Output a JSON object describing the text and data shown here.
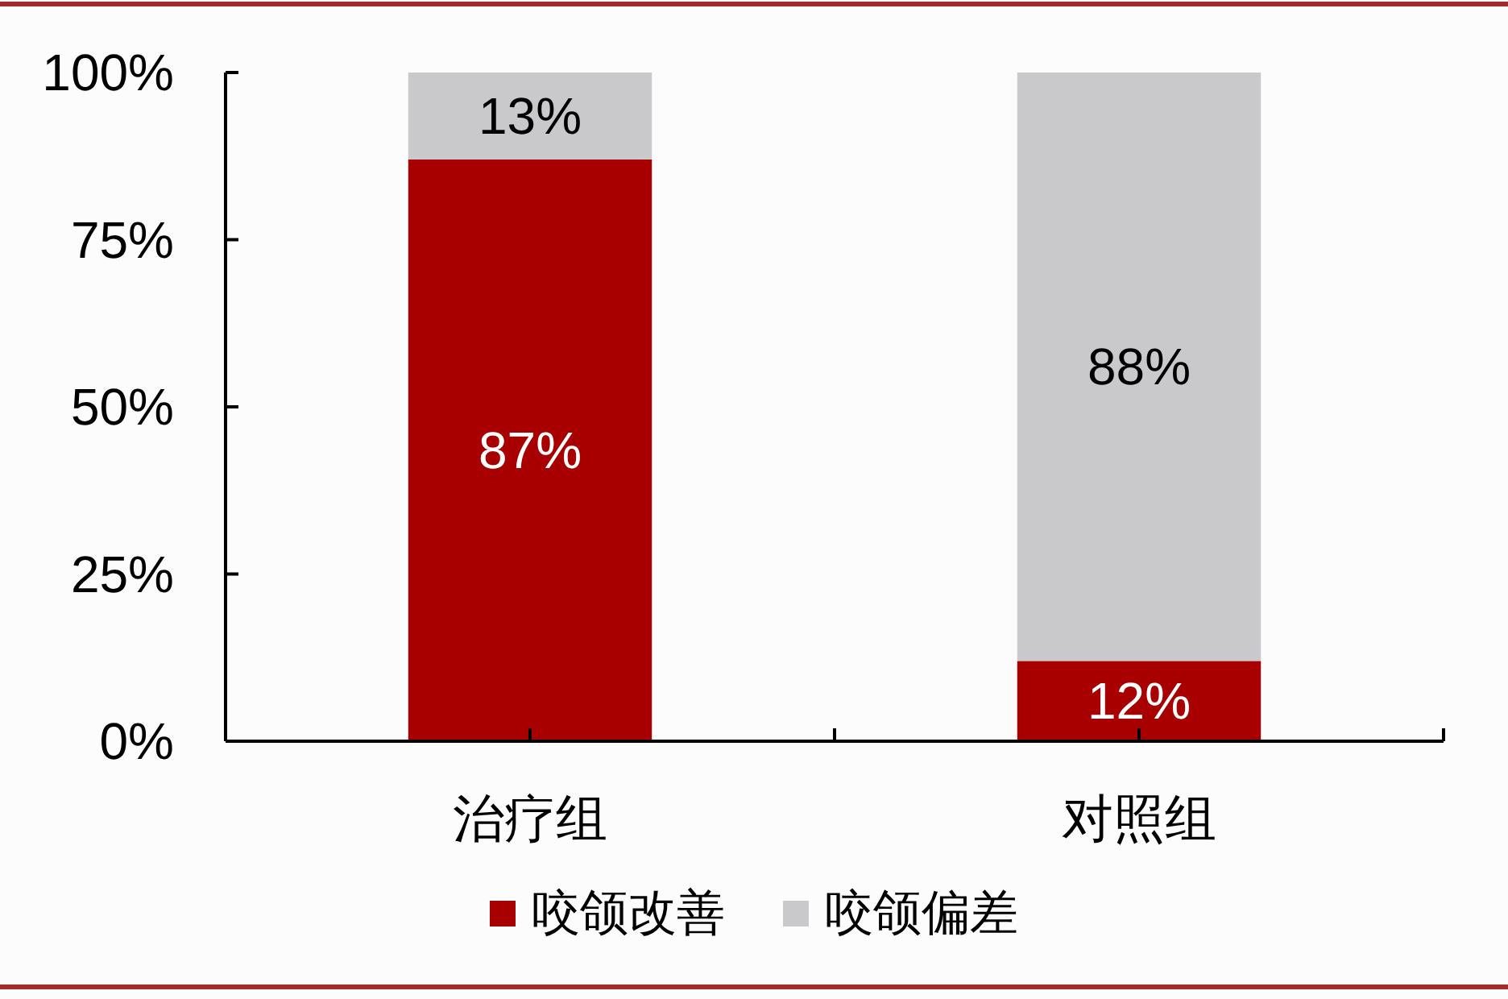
{
  "chart_data": {
    "type": "bar",
    "stacked": true,
    "categories": [
      "治疗组",
      "对照组"
    ],
    "series": [
      {
        "name": "咬颌改善",
        "color": "#a80000",
        "values": [
          87,
          12
        ],
        "value_labels": [
          "87%",
          "12%"
        ]
      },
      {
        "name": "咬颌偏差",
        "color": "#c9c9cc",
        "values": [
          13,
          88
        ],
        "value_labels": [
          "13%",
          "88%"
        ]
      }
    ],
    "ylim": [
      0,
      100
    ],
    "yticks": [
      {
        "value": 0,
        "label": "0%"
      },
      {
        "value": 25,
        "label": "25%"
      },
      {
        "value": 50,
        "label": "50%"
      },
      {
        "value": 75,
        "label": "75%"
      },
      {
        "value": 100,
        "label": "100%"
      }
    ],
    "legend": "bottom"
  }
}
